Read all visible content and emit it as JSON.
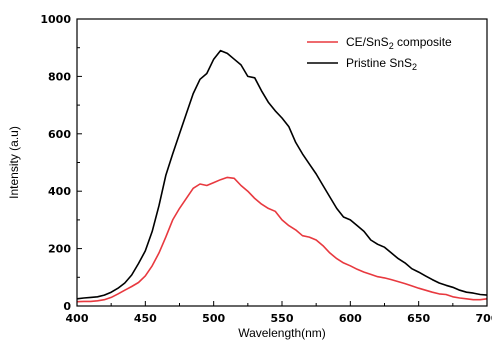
{
  "chart_data": {
    "type": "line",
    "xlabel": "Wavelength(nm)",
    "ylabel": "Intensity (a.u)",
    "xlim": [
      400,
      700
    ],
    "ylim": [
      0,
      1000
    ],
    "x_ticks": [
      400,
      450,
      500,
      550,
      600,
      650,
      700
    ],
    "y_ticks": [
      0,
      200,
      400,
      600,
      800,
      1000
    ],
    "legend_position": "top-right",
    "series": [
      {
        "name": "CE/SnS2 composite",
        "legend_main": "CE/SnS",
        "legend_sub": "2",
        "legend_tail": " composite",
        "color": "#e8393f",
        "points": [
          [
            400,
            15
          ],
          [
            405,
            16
          ],
          [
            410,
            16
          ],
          [
            415,
            18
          ],
          [
            420,
            22
          ],
          [
            425,
            30
          ],
          [
            430,
            42
          ],
          [
            435,
            55
          ],
          [
            440,
            68
          ],
          [
            445,
            82
          ],
          [
            450,
            105
          ],
          [
            455,
            140
          ],
          [
            460,
            185
          ],
          [
            465,
            240
          ],
          [
            470,
            300
          ],
          [
            475,
            340
          ],
          [
            480,
            375
          ],
          [
            485,
            410
          ],
          [
            490,
            425
          ],
          [
            495,
            420
          ],
          [
            500,
            430
          ],
          [
            505,
            440
          ],
          [
            510,
            448
          ],
          [
            515,
            445
          ],
          [
            520,
            420
          ],
          [
            525,
            400
          ],
          [
            530,
            375
          ],
          [
            535,
            355
          ],
          [
            540,
            340
          ],
          [
            545,
            330
          ],
          [
            550,
            300
          ],
          [
            555,
            280
          ],
          [
            560,
            265
          ],
          [
            565,
            245
          ],
          [
            570,
            240
          ],
          [
            575,
            230
          ],
          [
            580,
            210
          ],
          [
            585,
            185
          ],
          [
            590,
            165
          ],
          [
            595,
            150
          ],
          [
            600,
            140
          ],
          [
            605,
            128
          ],
          [
            610,
            118
          ],
          [
            615,
            110
          ],
          [
            620,
            102
          ],
          [
            625,
            98
          ],
          [
            630,
            92
          ],
          [
            635,
            85
          ],
          [
            640,
            78
          ],
          [
            645,
            70
          ],
          [
            650,
            62
          ],
          [
            655,
            55
          ],
          [
            660,
            48
          ],
          [
            665,
            42
          ],
          [
            670,
            40
          ],
          [
            675,
            32
          ],
          [
            680,
            28
          ],
          [
            685,
            25
          ],
          [
            690,
            22
          ],
          [
            695,
            22
          ],
          [
            700,
            25
          ]
        ]
      },
      {
        "name": "Pristine SnS2",
        "legend_main": "Pristine SnS",
        "legend_sub": "2",
        "legend_tail": "",
        "color": "#000000",
        "points": [
          [
            400,
            25
          ],
          [
            405,
            28
          ],
          [
            410,
            30
          ],
          [
            415,
            32
          ],
          [
            420,
            38
          ],
          [
            425,
            48
          ],
          [
            430,
            62
          ],
          [
            435,
            80
          ],
          [
            440,
            108
          ],
          [
            445,
            148
          ],
          [
            450,
            192
          ],
          [
            455,
            260
          ],
          [
            460,
            350
          ],
          [
            465,
            455
          ],
          [
            470,
            530
          ],
          [
            475,
            600
          ],
          [
            480,
            670
          ],
          [
            485,
            740
          ],
          [
            490,
            790
          ],
          [
            495,
            810
          ],
          [
            500,
            860
          ],
          [
            505,
            890
          ],
          [
            510,
            880
          ],
          [
            515,
            860
          ],
          [
            520,
            840
          ],
          [
            525,
            800
          ],
          [
            530,
            795
          ],
          [
            535,
            750
          ],
          [
            540,
            710
          ],
          [
            545,
            680
          ],
          [
            550,
            655
          ],
          [
            555,
            625
          ],
          [
            560,
            570
          ],
          [
            565,
            530
          ],
          [
            570,
            495
          ],
          [
            575,
            460
          ],
          [
            580,
            420
          ],
          [
            585,
            380
          ],
          [
            590,
            340
          ],
          [
            595,
            310
          ],
          [
            600,
            300
          ],
          [
            605,
            280
          ],
          [
            610,
            260
          ],
          [
            615,
            230
          ],
          [
            620,
            215
          ],
          [
            625,
            205
          ],
          [
            630,
            185
          ],
          [
            635,
            165
          ],
          [
            640,
            150
          ],
          [
            645,
            130
          ],
          [
            650,
            118
          ],
          [
            655,
            105
          ],
          [
            660,
            92
          ],
          [
            665,
            80
          ],
          [
            670,
            72
          ],
          [
            675,
            65
          ],
          [
            680,
            55
          ],
          [
            685,
            48
          ],
          [
            690,
            45
          ],
          [
            695,
            40
          ],
          [
            700,
            38
          ]
        ]
      }
    ]
  }
}
